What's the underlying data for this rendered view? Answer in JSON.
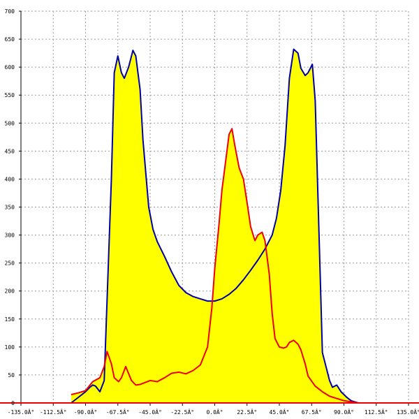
{
  "chart_data": {
    "type": "area",
    "title": "",
    "xlabel": "",
    "ylabel": "",
    "xlim": [
      -135,
      135
    ],
    "ylim": [
      0,
      700
    ],
    "grid": true,
    "x_ticks": [
      -135,
      -112.5,
      -90,
      -67.5,
      -45,
      -22.5,
      0,
      22.5,
      45,
      67.5,
      90,
      112.5,
      135
    ],
    "x_tick_labels": [
      "-135.0Â°",
      "-112.5Â°",
      "-90.0Â°",
      "-67.5Â°",
      "-45.0Â°",
      "-22.5Â°",
      "0.0Â°",
      "22.5Â°",
      "45.0Â°",
      "67.5Â°",
      "90.0Â°",
      "112.5Â°",
      "135.0Â°"
    ],
    "y_ticks": [
      0,
      50,
      100,
      150,
      200,
      250,
      300,
      350,
      400,
      450,
      500,
      550,
      600,
      650,
      700
    ],
    "y_tick_labels": [
      "0",
      "50",
      "100",
      "150",
      "200",
      "250",
      "300",
      "350",
      "400",
      "450",
      "500",
      "550",
      "600",
      "650",
      "700"
    ],
    "colors": {
      "fill": "#ffff00",
      "series_1": "#0000aa",
      "series_2": "#ee0000",
      "grid": "#9a9a9a",
      "axis": "#000000",
      "baseline": "#ee0000"
    },
    "series": [
      {
        "color": "#0000aa",
        "fill": true,
        "x": [
          -100,
          -95,
          -90,
          -87,
          -85,
          -83,
          -80,
          -77,
          -72,
          -70,
          -67.5,
          -65,
          -63,
          -60,
          -57,
          -55,
          -52,
          -50,
          -46,
          -43,
          -40,
          -35,
          -30,
          -25,
          -20,
          -15,
          -10,
          -5,
          0,
          5,
          10,
          15,
          20,
          25,
          30,
          35,
          40,
          43,
          46,
          49,
          52,
          55,
          58,
          60,
          63,
          65,
          68,
          70,
          75,
          80,
          82,
          85,
          88,
          92,
          95,
          100
        ],
        "y": [
          0,
          10,
          20,
          28,
          32,
          30,
          20,
          40,
          400,
          590,
          620,
          590,
          580,
          600,
          630,
          620,
          560,
          470,
          350,
          310,
          288,
          262,
          234,
          210,
          197,
          190,
          186,
          182,
          182,
          186,
          194,
          205,
          220,
          237,
          255,
          275,
          300,
          330,
          380,
          460,
          580,
          632,
          625,
          598,
          585,
          590,
          605,
          540,
          90,
          40,
          28,
          32,
          20,
          10,
          4,
          0
        ]
      },
      {
        "color": "#ee0000",
        "fill": false,
        "x": [
          -100,
          -95,
          -90,
          -85,
          -80,
          -77,
          -75,
          -72,
          -70,
          -67,
          -65,
          -62,
          -58,
          -55,
          -52,
          -50,
          -45,
          -40,
          -35,
          -30,
          -25,
          -20,
          -15,
          -10,
          -5,
          -2,
          0,
          3,
          5,
          8,
          10,
          12,
          14,
          17,
          20,
          23,
          25,
          28,
          30,
          33,
          35,
          38,
          40,
          42,
          45,
          48,
          50,
          52,
          55,
          58,
          60,
          63,
          65,
          70,
          75,
          80,
          85,
          90,
          95,
          100
        ],
        "y": [
          15,
          18,
          22,
          38,
          45,
          65,
          92,
          70,
          45,
          38,
          45,
          65,
          40,
          32,
          33,
          35,
          40,
          38,
          45,
          53,
          55,
          52,
          58,
          68,
          100,
          170,
          240,
          320,
          380,
          440,
          480,
          490,
          460,
          420,
          400,
          350,
          315,
          290,
          300,
          305,
          290,
          230,
          160,
          115,
          100,
          98,
          100,
          108,
          112,
          105,
          95,
          70,
          48,
          30,
          20,
          12,
          8,
          4,
          2,
          0
        ]
      }
    ]
  }
}
